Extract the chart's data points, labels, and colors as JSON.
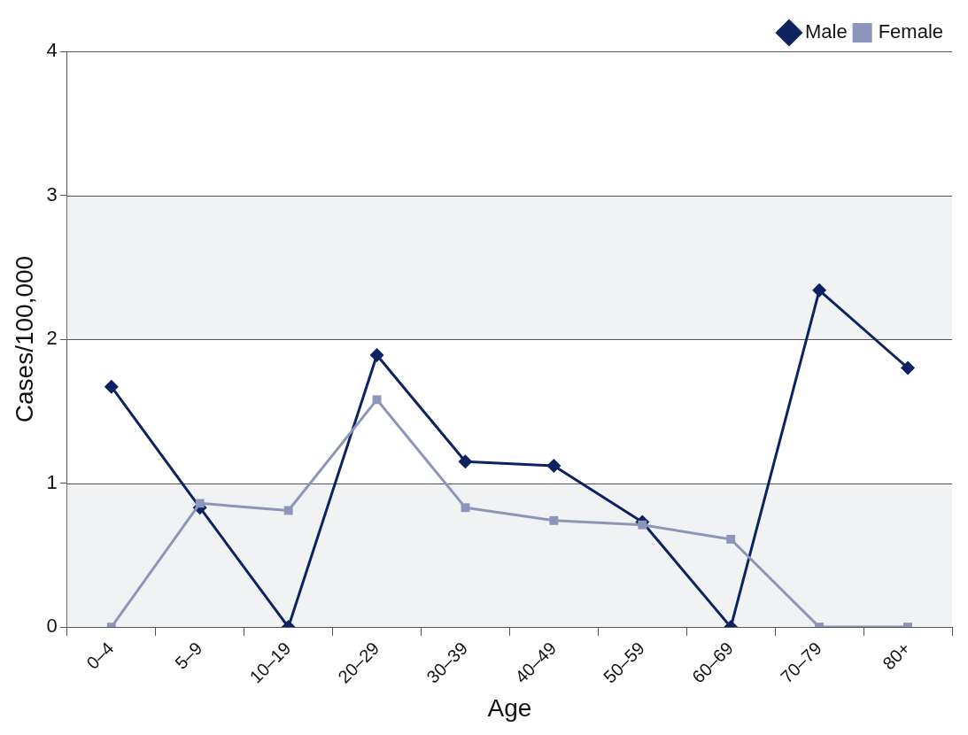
{
  "chart_data": {
    "type": "line",
    "xlabel": "Age",
    "ylabel": "Cases/100,000",
    "categories": [
      "0–4",
      "5–9",
      "10–19",
      "20–29",
      "30–39",
      "40–49",
      "50–59",
      "60–69",
      "70–79",
      "80+"
    ],
    "series": [
      {
        "name": "Male",
        "color": "#0d2260",
        "marker": "diamond",
        "values": [
          1.67,
          0.83,
          0,
          1.89,
          1.15,
          1.12,
          0.73,
          0,
          2.34,
          1.8
        ]
      },
      {
        "name": "Female",
        "color": "#8e95bb",
        "marker": "square",
        "values": [
          0,
          0.86,
          0.81,
          1.58,
          0.83,
          0.74,
          0.71,
          0.61,
          0,
          0
        ]
      }
    ],
    "ylim": [
      0,
      4
    ],
    "yticks": [
      0,
      1,
      2,
      3,
      4
    ],
    "grid": "y",
    "legend": "top right",
    "line_style": "solid",
    "bands": [
      {
        "axis": "y",
        "from": 0,
        "to": 1,
        "color": "#f1f2f4"
      },
      {
        "axis": "y",
        "from": 2,
        "to": 3,
        "color": "#f1f2f4"
      }
    ]
  }
}
